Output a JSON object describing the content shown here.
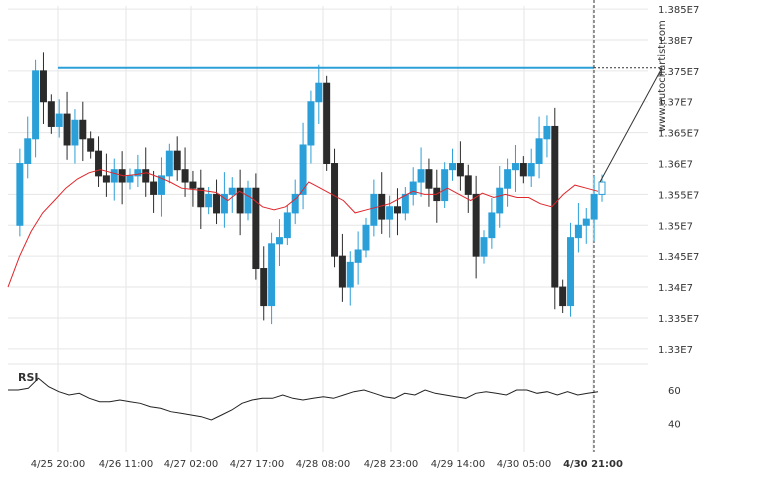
{
  "colors": {
    "bull": "#2a9fd8",
    "bear": "#2b2b2b",
    "ma": "#e0262b",
    "resistance": "#2a9fd8",
    "grid": "#e6e6e6",
    "text": "#333333",
    "rsi": "#222222"
  },
  "watermark": "www.autochartist.com",
  "chart_data": {
    "type": "candlestick",
    "y_ticks": [
      "1.385E7",
      "1.38E7",
      "1.375E7",
      "1.37E7",
      "1.365E7",
      "1.36E7",
      "1.355E7",
      "1.35E7",
      "1.345E7",
      "1.34E7",
      "1.335E7",
      "1.33E7"
    ],
    "ylim": [
      13.29,
      13.855
    ],
    "x_ticks": [
      "4/25 20:00",
      "4/26 11:00",
      "4/27 02:00",
      "4/27 17:00",
      "4/28 08:00",
      "4/28 23:00",
      "4/29 14:00",
      "4/30 05:00",
      "4/30 21:00"
    ],
    "resistance_level": 13.755,
    "price_series": [
      13.5,
      13.6,
      13.64,
      13.75,
      13.7,
      13.66,
      13.68,
      13.63,
      13.67,
      13.64,
      13.62,
      13.58,
      13.57,
      13.59,
      13.57,
      13.58,
      13.59,
      13.57,
      13.55,
      13.58,
      13.62,
      13.59,
      13.57,
      13.56,
      13.53,
      13.55,
      13.52,
      13.55,
      13.56,
      13.52,
      13.56,
      13.43,
      13.37,
      13.47,
      13.48,
      13.52,
      13.55,
      13.63,
      13.7,
      13.73,
      13.6,
      13.45,
      13.4,
      13.44,
      13.46,
      13.5,
      13.55,
      13.51,
      13.53,
      13.52,
      13.55,
      13.57,
      13.59,
      13.56,
      13.54,
      13.59,
      13.6,
      13.58,
      13.55,
      13.45,
      13.48,
      13.52,
      13.56,
      13.59,
      13.6,
      13.58,
      13.6,
      13.64,
      13.66,
      13.4,
      13.37,
      13.48,
      13.5,
      13.51,
      13.55,
      13.57
    ],
    "ma_series": [
      13.4,
      13.45,
      13.49,
      13.52,
      13.54,
      13.56,
      13.575,
      13.585,
      13.59,
      13.585,
      13.58,
      13.582,
      13.585,
      13.578,
      13.57,
      13.56,
      13.558,
      13.556,
      13.553,
      13.54,
      13.555,
      13.545,
      13.53,
      13.525,
      13.53,
      13.545,
      13.57,
      13.56,
      13.55,
      13.54,
      13.52,
      13.525,
      13.53,
      13.535,
      13.545,
      13.555,
      13.55,
      13.55,
      13.56,
      13.55,
      13.54,
      13.552,
      13.545,
      13.55,
      13.545,
      13.545,
      13.535,
      13.53,
      13.55,
      13.565,
      13.56,
      13.555
    ],
    "rsi_series": [
      60,
      60,
      61,
      67,
      62,
      59,
      57,
      58,
      55,
      53,
      53,
      54,
      53,
      52,
      50,
      49,
      47,
      46,
      45,
      44,
      42,
      45,
      48,
      52,
      54,
      55,
      55,
      57,
      55,
      54,
      55,
      56,
      55,
      57,
      59,
      60,
      58,
      56,
      55,
      58,
      57,
      60,
      58,
      57,
      56,
      55,
      58,
      59,
      58,
      57,
      60,
      60,
      58,
      59,
      57,
      59,
      57,
      58,
      59
    ],
    "rsi_label": "RSI",
    "rsi_ticks": [
      "60",
      "40"
    ],
    "rsi_ylim": [
      30,
      72
    ]
  }
}
